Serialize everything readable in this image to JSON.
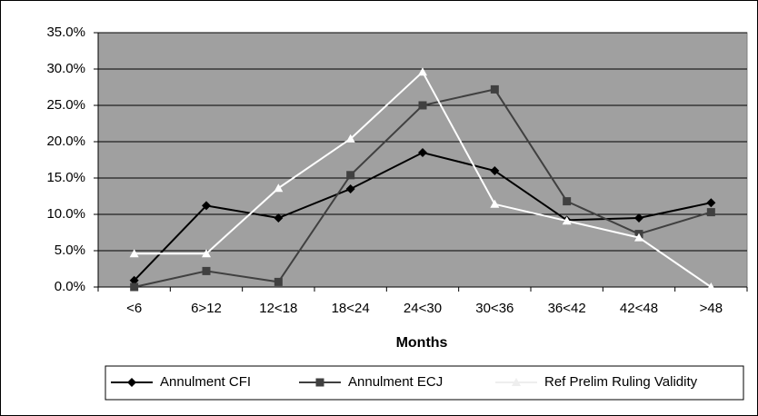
{
  "chart_data": {
    "type": "line",
    "xlabel": "Months",
    "categories": [
      "<6",
      "6>12",
      "12<18",
      "18<24",
      "24<30",
      "30<36",
      "36<42",
      "42<48",
      ">48"
    ],
    "series": [
      {
        "name": "Annulment CFI",
        "color": "#000000",
        "marker": "diamond",
        "values": [
          0.9,
          11.2,
          9.5,
          13.5,
          18.5,
          16.0,
          9.2,
          9.5,
          11.6
        ]
      },
      {
        "name": "Annulment ECJ",
        "color": "#404040",
        "marker": "square",
        "values": [
          0.0,
          2.2,
          0.7,
          15.4,
          25.0,
          27.2,
          11.8,
          7.3,
          10.3
        ]
      },
      {
        "name": "Ref Prelim Ruling Validity",
        "color": "#ffffff",
        "marker": "triangle",
        "values": [
          4.6,
          4.6,
          13.6,
          20.4,
          29.6,
          11.4,
          9.1,
          6.8,
          0.0
        ]
      }
    ],
    "ylim": [
      0,
      35
    ],
    "yticks": [
      {
        "value": 0,
        "label": "0.0%"
      },
      {
        "value": 5,
        "label": "5.0%"
      },
      {
        "value": 10,
        "label": "10.0%"
      },
      {
        "value": 15,
        "label": "15.0%"
      },
      {
        "value": 20,
        "label": "20.0%"
      },
      {
        "value": 25,
        "label": "25.0%"
      },
      {
        "value": 30,
        "label": "30.0%"
      },
      {
        "value": 35,
        "label": "35.0%"
      }
    ],
    "grid": true,
    "plot_background": "#a0a0a0",
    "legend": "bottom"
  }
}
